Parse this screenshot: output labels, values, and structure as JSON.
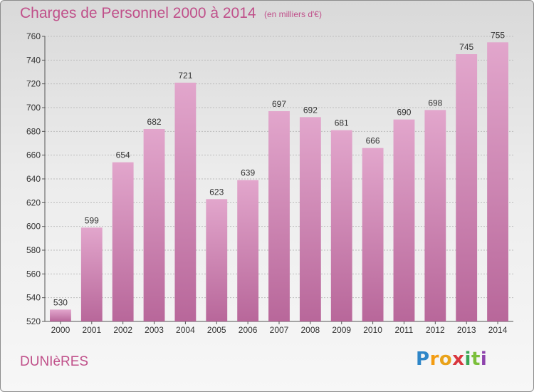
{
  "chart_data": {
    "type": "bar",
    "title": "Charges de Personnel 2000 à 2014",
    "subtitle": "(en milliers d'€)",
    "categories": [
      "2000",
      "2001",
      "2002",
      "2003",
      "2004",
      "2005",
      "2006",
      "2007",
      "2008",
      "2009",
      "2010",
      "2011",
      "2012",
      "2013",
      "2014"
    ],
    "values": [
      530,
      599,
      654,
      682,
      721,
      623,
      639,
      697,
      692,
      681,
      666,
      690,
      698,
      745,
      755
    ],
    "ylim": [
      520,
      760
    ],
    "yticks": [
      520,
      540,
      560,
      580,
      600,
      620,
      640,
      660,
      680,
      700,
      720,
      740,
      760
    ],
    "grid": true,
    "xlabel": "",
    "ylabel": "",
    "bar_color": "#d98fbd",
    "title_color": "#c0508a"
  },
  "commune": "DUNIèRES",
  "logo": {
    "letters": [
      "P",
      "r",
      "o",
      "x",
      "i",
      "t",
      "i"
    ],
    "colors": [
      "#2e86c8",
      "#f39c12",
      "#e9a21a",
      "#d9363e",
      "#3aa655",
      "#7bbf3a",
      "#8e44ad"
    ]
  }
}
